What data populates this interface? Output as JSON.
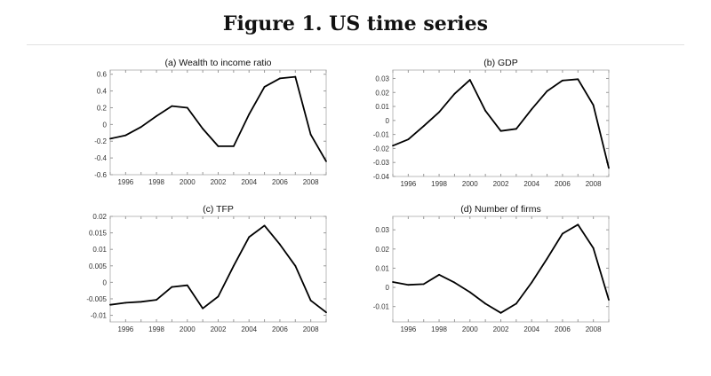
{
  "title": "Figure 1. US time series",
  "chart_data": [
    {
      "type": "line",
      "title": "(a)   Wealth to income ratio",
      "xlim": [
        1995,
        2009
      ],
      "ylim": [
        -0.6,
        0.65
      ],
      "xticks": [
        1996,
        1998,
        2000,
        2002,
        2004,
        2006,
        2008
      ],
      "yticks": [
        -0.6,
        -0.4,
        -0.2,
        0,
        0.2,
        0.4,
        0.6
      ],
      "yticklabels": [
        "-0.6",
        "-0.4",
        "-0.2",
        "0",
        "0.2",
        "0.4",
        "0.6"
      ],
      "x": [
        1995,
        1996,
        1997,
        1998,
        1999,
        2000,
        2001,
        2002,
        2003,
        2004,
        2005,
        2006,
        2007,
        2008,
        2009
      ],
      "y": [
        -0.17,
        -0.13,
        -0.03,
        0.1,
        0.22,
        0.2,
        -0.05,
        -0.26,
        -0.26,
        0.12,
        0.45,
        0.55,
        0.57,
        -0.12,
        -0.44
      ]
    },
    {
      "type": "line",
      "title": "(b)   GDP",
      "xlim": [
        1995,
        2009
      ],
      "ylim": [
        -0.04,
        0.036
      ],
      "xticks": [
        1996,
        1998,
        2000,
        2002,
        2004,
        2006,
        2008
      ],
      "yticks": [
        -0.04,
        -0.03,
        -0.02,
        -0.01,
        0,
        0.01,
        0.02,
        0.03
      ],
      "yticklabels": [
        "-0.04",
        "-0.03",
        "-0.02",
        "-0.01",
        "0",
        "0.01",
        "0.02",
        "0.03"
      ],
      "x": [
        1995,
        1996,
        1997,
        1998,
        1999,
        2000,
        2001,
        2002,
        2003,
        2004,
        2005,
        2006,
        2007,
        2008,
        2009
      ],
      "y": [
        -0.018,
        -0.0135,
        -0.004,
        0.006,
        0.019,
        0.029,
        0.007,
        -0.0075,
        -0.006,
        0.008,
        0.021,
        0.0285,
        0.0295,
        0.011,
        -0.034
      ]
    },
    {
      "type": "line",
      "title": "(c)   TFP",
      "xlim": [
        1995,
        2009
      ],
      "ylim": [
        -0.012,
        0.02
      ],
      "xticks": [
        1996,
        1998,
        2000,
        2002,
        2004,
        2006,
        2008
      ],
      "yticks": [
        -0.01,
        -0.005,
        0,
        0.005,
        0.01,
        0.015,
        0.02
      ],
      "yticklabels": [
        "-0.01",
        "-0.005",
        "0",
        "0.005",
        "0.01",
        "0.015",
        "0.02"
      ],
      "x": [
        1995,
        1996,
        1997,
        1998,
        1999,
        2000,
        2001,
        2002,
        2003,
        2004,
        2005,
        2006,
        2007,
        2008,
        2009
      ],
      "y": [
        -0.0068,
        -0.0062,
        -0.0059,
        -0.0053,
        -0.0014,
        -0.0009,
        -0.0079,
        -0.0043,
        0.005,
        0.0137,
        0.0172,
        0.0115,
        0.005,
        -0.0055,
        -0.0091
      ]
    },
    {
      "type": "line",
      "title": "(d)   Number of firms",
      "xlim": [
        1995,
        2009
      ],
      "ylim": [
        -0.018,
        0.037
      ],
      "xticks": [
        1996,
        1998,
        2000,
        2002,
        2004,
        2006,
        2008
      ],
      "yticks": [
        -0.01,
        0,
        0.01,
        0.02,
        0.03
      ],
      "yticklabels": [
        "-0.01",
        "0",
        "0.01",
        "0.02",
        "0.03"
      ],
      "x": [
        1995,
        1996,
        1997,
        1998,
        1999,
        2000,
        2001,
        2002,
        2003,
        2004,
        2005,
        2006,
        2007,
        2008,
        2009
      ],
      "y": [
        0.0028,
        0.0013,
        0.0017,
        0.0066,
        0.0025,
        -0.0025,
        -0.0085,
        -0.0133,
        -0.0085,
        0.0025,
        0.015,
        0.028,
        0.0327,
        0.0205,
        -0.0065
      ]
    }
  ]
}
